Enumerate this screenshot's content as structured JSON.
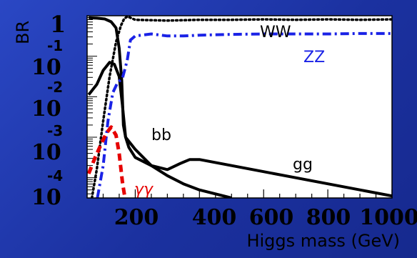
{
  "chart_data": {
    "type": "line",
    "xlabel": "Higgs mass (GeV)",
    "ylabel": "BR",
    "xlim": [
      50,
      1000
    ],
    "ylim_log10": [
      -4.5,
      0
    ],
    "log_y": true,
    "x_ticks": [
      "200",
      "400",
      "600",
      "800",
      "1000"
    ],
    "y_ticks": [
      {
        "base": "1",
        "exp": ""
      },
      {
        "base": "10",
        "exp": "-1"
      },
      {
        "base": "10",
        "exp": "-2"
      },
      {
        "base": "10",
        "exp": "-3"
      },
      {
        "base": "10",
        "exp": "-4"
      }
    ],
    "series": [
      {
        "name": "bb",
        "color": "#000000",
        "dash": "solid",
        "x": [
          55,
          80,
          105,
          125,
          140,
          150,
          158,
          163,
          170,
          180,
          200,
          250,
          300,
          350,
          400,
          500
        ],
        "log10_y": [
          -0.05,
          -0.06,
          -0.08,
          -0.15,
          -0.3,
          -0.8,
          -1.6,
          -2.7,
          -3.0,
          -3.1,
          -3.3,
          -3.7,
          -3.95,
          -4.15,
          -4.3,
          -4.5
        ]
      },
      {
        "name": "gg",
        "color": "#000000",
        "dash": "solid",
        "x": [
          55,
          80,
          100,
          120,
          135,
          150,
          160,
          170,
          180,
          200,
          250,
          300,
          340,
          370,
          400,
          500,
          600,
          700,
          800,
          900,
          1000
        ],
        "log10_y": [
          -1.95,
          -1.7,
          -1.35,
          -1.15,
          -1.2,
          -1.5,
          -2.2,
          -3.0,
          -3.25,
          -3.5,
          -3.7,
          -3.8,
          -3.65,
          -3.55,
          -3.55,
          -3.7,
          -3.85,
          -4.0,
          -4.15,
          -4.3,
          -4.45
        ]
      },
      {
        "name": "WW",
        "color": "#000000",
        "dash": "dotted",
        "x": [
          65,
          80,
          100,
          120,
          140,
          155,
          165,
          175,
          185,
          200,
          300,
          400,
          500,
          600,
          700,
          800,
          900,
          1000
        ],
        "log10_y": [
          -4.5,
          -3.8,
          -2.6,
          -1.5,
          -0.65,
          -0.25,
          -0.08,
          -0.02,
          -0.05,
          -0.1,
          -0.12,
          -0.1,
          -0.1,
          -0.09,
          -0.1,
          -0.09,
          -0.1,
          -0.09
        ]
      },
      {
        "name": "ZZ",
        "color": "#1a22e6",
        "dash": "dashdot",
        "x": [
          82,
          100,
          115,
          130,
          145,
          160,
          175,
          185,
          200,
          250,
          300,
          350,
          400,
          500,
          600,
          700,
          800,
          900,
          1000
        ],
        "log10_y": [
          -4.5,
          -3.7,
          -2.6,
          -1.9,
          -1.65,
          -1.55,
          -1.1,
          -0.6,
          -0.5,
          -0.45,
          -0.5,
          -0.5,
          -0.48,
          -0.46,
          -0.45,
          -0.45,
          -0.45,
          -0.44,
          -0.44
        ]
      },
      {
        "name": "γγ",
        "color": "#e60000",
        "dash": "dashed",
        "x": [
          55,
          75,
          95,
          110,
          125,
          140,
          150,
          160,
          168
        ],
        "log10_y": [
          -3.9,
          -3.5,
          -3.15,
          -2.9,
          -2.75,
          -2.95,
          -3.4,
          -4.1,
          -4.5
        ]
      }
    ],
    "legend": "inline"
  }
}
